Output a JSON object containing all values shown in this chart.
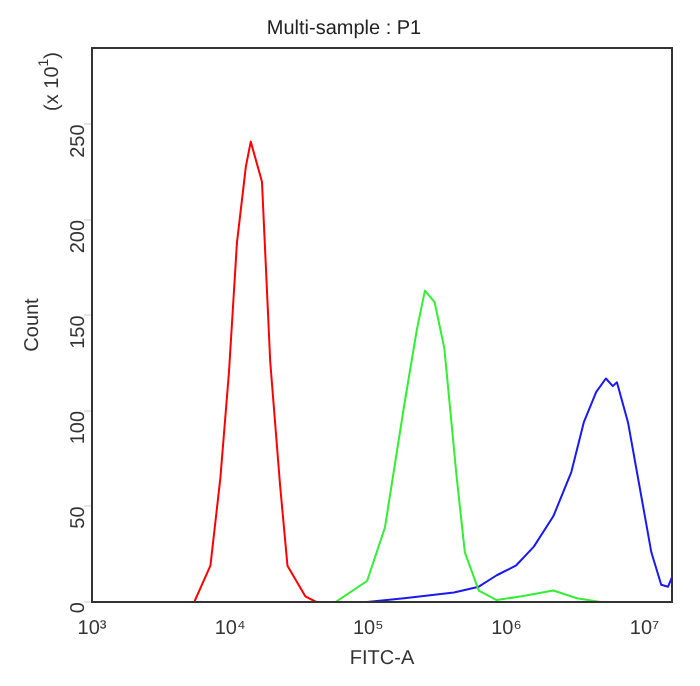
{
  "chart_data": {
    "type": "line",
    "title": "Multi-sample : P1",
    "xlabel": "FITC-A",
    "ylabel": "Count",
    "annotations": [
      "(x 10$^{1}$)"
    ],
    "log": "x",
    "grid": false,
    "legend": false,
    "marker": "none",
    "line_style": "solid",
    "xlim": [
      1000,
      15800000
    ],
    "xticks": [
      {
        "value": 1000,
        "label": "10³"
      },
      {
        "value": 10000,
        "label": "10⁴"
      },
      {
        "value": 100000,
        "label": "10⁵"
      },
      {
        "value": 1000000,
        "label": "10⁶"
      },
      {
        "value": 10000000,
        "label": "10⁷"
      }
    ],
    "ylim": [
      0,
      290
    ],
    "yticks": [
      0,
      50,
      100,
      150,
      200,
      250
    ],
    "series": [
      {
        "color": "#ff0000",
        "x": [
          5500,
          7200,
          8500,
          9800,
          11200,
          13000,
          14100,
          17000,
          19500,
          23000,
          26000,
          35000,
          42000
        ],
        "values": [
          0,
          19,
          65,
          120,
          188,
          228,
          241,
          220,
          126,
          61,
          19,
          3,
          0
        ]
      },
      {
        "color": "#33ee33",
        "x": [
          58000,
          98000,
          132000,
          182000,
          224000,
          257000,
          302000,
          355000,
          437000,
          500000,
          631000,
          851000,
          1290000,
          2190000,
          3240000,
          4790000
        ],
        "values": [
          0,
          11,
          39,
          103,
          142,
          163,
          157,
          133,
          65,
          26,
          6,
          1,
          3,
          6,
          2,
          0
        ]
      },
      {
        "color": "#1a1aee",
        "x": [
          98000,
          182000,
          417000,
          631000,
          851000,
          1170000,
          1580000,
          2190000,
          2950000,
          3630000,
          4470000,
          5250000,
          5890000,
          6310000,
          7590000,
          9330000,
          11200000,
          13200000,
          14800000,
          15800000
        ],
        "values": [
          0,
          2,
          5,
          8,
          14,
          19,
          29,
          45,
          68,
          94,
          110,
          117,
          113,
          115,
          94,
          58,
          26,
          9,
          8,
          13
        ]
      }
    ]
  }
}
